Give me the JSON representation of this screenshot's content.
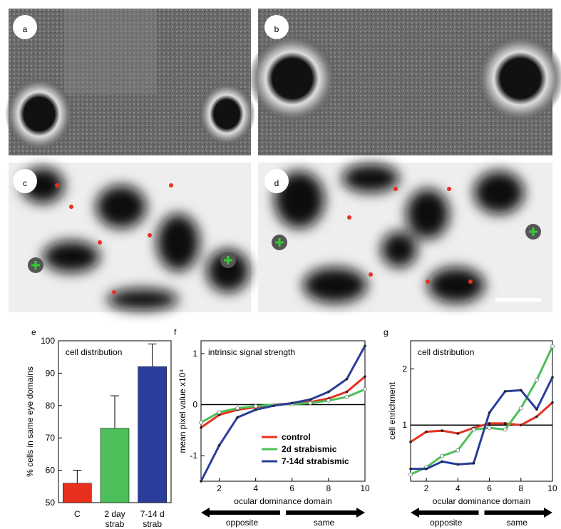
{
  "image_panels": [
    {
      "label": "a"
    },
    {
      "label": "b"
    },
    {
      "label": "c"
    },
    {
      "label": "d"
    }
  ],
  "chart_data": [
    {
      "type": "bar",
      "panel_label": "e",
      "title": "cell distribution",
      "y_label": "% cells in same eye domains",
      "categories": [
        "C",
        "2 day\nstrab",
        "7-14 d\nstrab"
      ],
      "values": [
        56,
        73,
        92
      ],
      "errors": [
        4,
        10,
        7
      ],
      "colors": [
        "#e8301f",
        "#4cbf5a",
        "#2a3d9a"
      ],
      "ylim": [
        50,
        100
      ],
      "yticks": [
        50,
        60,
        70,
        80,
        90,
        100
      ]
    },
    {
      "type": "line",
      "panel_label": "f",
      "title": "intrinsic signal strength",
      "y_label": "mean pixel value x10⁴",
      "x_label": "ocular dominance domain",
      "x_arrow_labels": [
        "opposite",
        "same"
      ],
      "x": [
        1,
        2,
        3,
        4,
        5,
        6,
        7,
        8,
        9,
        10
      ],
      "xlim": [
        1,
        10
      ],
      "xticks": [
        2,
        4,
        6,
        8,
        10
      ],
      "ylim": [
        -1.5,
        1.25
      ],
      "yticks": [
        -1,
        0,
        1
      ],
      "reference_line": 0,
      "legend": "lower right",
      "series": [
        {
          "name": "control",
          "color": "#e8301f",
          "values": [
            -0.45,
            -0.2,
            -0.1,
            -0.05,
            0,
            0.02,
            0.05,
            0.12,
            0.25,
            0.55
          ]
        },
        {
          "name": "2d strabismic",
          "color": "#4cbf5a",
          "values": [
            -0.35,
            -0.15,
            -0.07,
            -0.03,
            0,
            0.01,
            0.03,
            0.08,
            0.15,
            0.3
          ]
        },
        {
          "name": "7-14d strabismic",
          "color": "#2a3d9a",
          "values": [
            -1.5,
            -0.8,
            -0.25,
            -0.1,
            -0.02,
            0.03,
            0.1,
            0.25,
            0.5,
            1.15
          ]
        }
      ]
    },
    {
      "type": "line",
      "panel_label": "g",
      "title": "cell distribution",
      "y_label": "cell enrichment",
      "x_label": "ocular dominance domain",
      "x_arrow_labels": [
        "opposite",
        "same"
      ],
      "x": [
        1,
        2,
        3,
        4,
        5,
        6,
        7,
        8,
        9,
        10
      ],
      "xlim": [
        1,
        10
      ],
      "xticks": [
        2,
        4,
        6,
        8,
        10
      ],
      "ylim": [
        0,
        2.5
      ],
      "yticks": [
        1,
        2
      ],
      "reference_line": 1,
      "series": [
        {
          "name": "control",
          "color": "#e8301f",
          "values": [
            0.7,
            0.88,
            0.9,
            0.85,
            0.95,
            1.03,
            1.03,
            1.0,
            1.15,
            1.4
          ]
        },
        {
          "name": "2d strabismic",
          "color": "#4cbf5a",
          "values": [
            0.12,
            0.25,
            0.45,
            0.55,
            0.92,
            0.95,
            0.92,
            1.3,
            1.8,
            2.4
          ]
        },
        {
          "name": "7-14d strabismic",
          "color": "#2a3d9a",
          "values": [
            0.22,
            0.22,
            0.35,
            0.3,
            0.32,
            1.22,
            1.6,
            1.62,
            1.28,
            1.85
          ]
        }
      ]
    }
  ]
}
